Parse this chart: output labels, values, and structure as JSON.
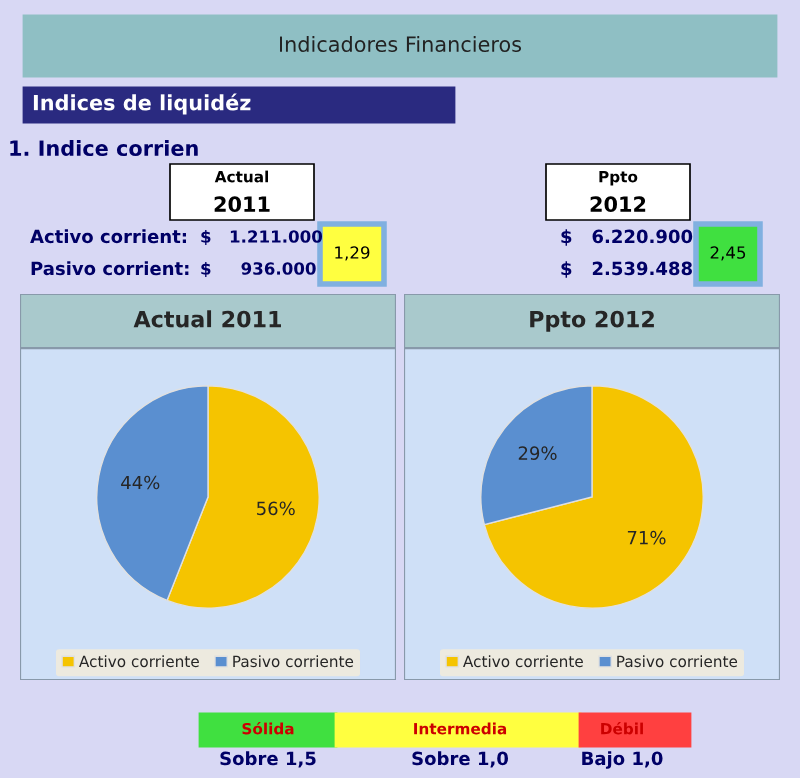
{
  "chart_data": [
    {
      "type": "other",
      "annotations": [
        "Indicadores Financieros",
        "Indices de liquidéz",
        "1. Indice corrien",
        "Actual",
        "2011",
        "Activo corrient:",
        "Pasivo corrient:",
        "$   1.211.000",
        "$     936.000",
        "1,29",
        "Ppto",
        "2012",
        "$   6.220.900",
        "$   2.539.488",
        "2,45"
      ]
    },
    {
      "type": "pie",
      "title": "Actual 2011",
      "categories": [
        "Activo corriente",
        "Pasivo corriente"
      ],
      "values": [
        56,
        44
      ],
      "colors": [
        "#f5c400",
        "#5a8fd0"
      ],
      "value_labels": [
        "56%",
        "44%"
      ],
      "legend": "bottom"
    },
    {
      "type": "pie",
      "title": "Ppto 2012",
      "categories": [
        "Activo corriente",
        "Pasivo corriente"
      ],
      "values": [
        71,
        29
      ],
      "colors": [
        "#f5c400",
        "#5a8fd0"
      ],
      "value_labels": [
        "71%",
        "29%"
      ],
      "legend": "bottom"
    },
    {
      "type": "other",
      "annotations": [
        "Sólida",
        "Intermedia",
        "Débil",
        "Sobre 1,5",
        "Sobre 1,0",
        "Bajo 1,0"
      ]
    }
  ]
}
